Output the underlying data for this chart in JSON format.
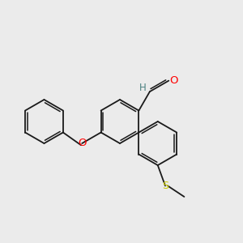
{
  "bg_color": "#ebebeb",
  "bond_color": "#1a1a1a",
  "atom_colors": {
    "O": "#ff0000",
    "S": "#cccc00",
    "H": "#4a8080",
    "C": "#1a1a1a"
  },
  "bond_lw": 1.3,
  "ring_r": 25,
  "figsize": [
    3.0,
    3.0
  ],
  "dpi": 100
}
